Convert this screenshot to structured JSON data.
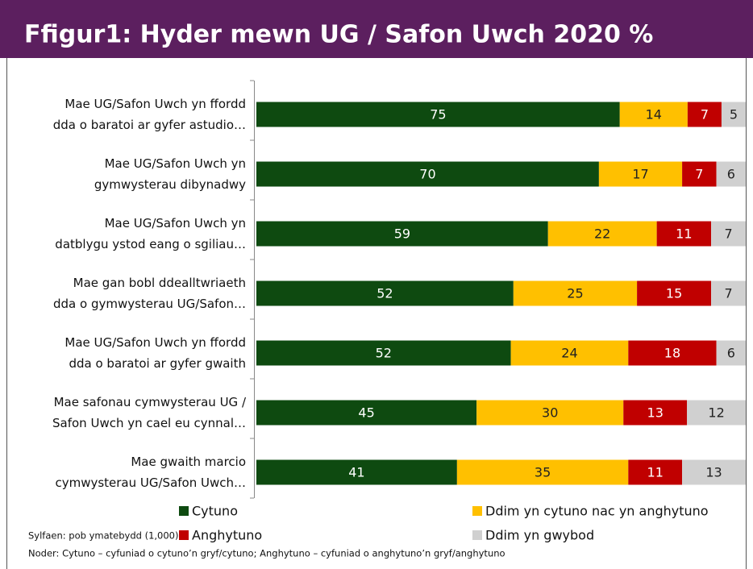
{
  "chart_data": {
    "type": "stacked_bar_horizontal_100",
    "title": "Ffigur1: Hyder mewn UG / Safon Uwch 2020 %",
    "categories": [
      "Mae UG/Safon Uwch yn ffordd\ndda o baratoi ar gyfer astudio…",
      "Mae UG/Safon Uwch yn\ngymwysterau dibynadwy",
      "Mae UG/Safon Uwch yn\ndatblygu ystod eang o sgiliau…",
      "Mae gan bobl ddealltwriaeth\ndda o gymwysterau UG/Safon…",
      "Mae UG/Safon Uwch yn ffordd\ndda o baratoi ar gyfer gwaith",
      "Mae safonau cymwysterau UG /\nSafon Uwch yn cael eu cynnal…",
      "Mae gwaith marcio\ncymwysterau UG/Safon Uwch…"
    ],
    "series": [
      {
        "name": "Cytuno",
        "color": "#0e4a10",
        "values": [
          75,
          70,
          59,
          52,
          52,
          45,
          41
        ]
      },
      {
        "name": "Ddim yn cytuno nac yn anghytuno",
        "color": "#ffc000",
        "values": [
          14,
          17,
          22,
          25,
          24,
          30,
          35
        ]
      },
      {
        "name": "Anghytuno",
        "color": "#c00000",
        "values": [
          7,
          7,
          11,
          15,
          18,
          13,
          11
        ]
      },
      {
        "name": "Ddim yn gwybod",
        "color": "#d0d0d0",
        "values": [
          5,
          6,
          7,
          7,
          6,
          12,
          13
        ]
      }
    ],
    "notes": [
      "Sylfaen: pob ymatebydd (1,000)",
      "Noder: Cytuno – cyfuniad o cytuno’n gryf/cytuno;  Anghytuno – cyfuniad o anghytuno’n gryf/anghytuno"
    ]
  }
}
